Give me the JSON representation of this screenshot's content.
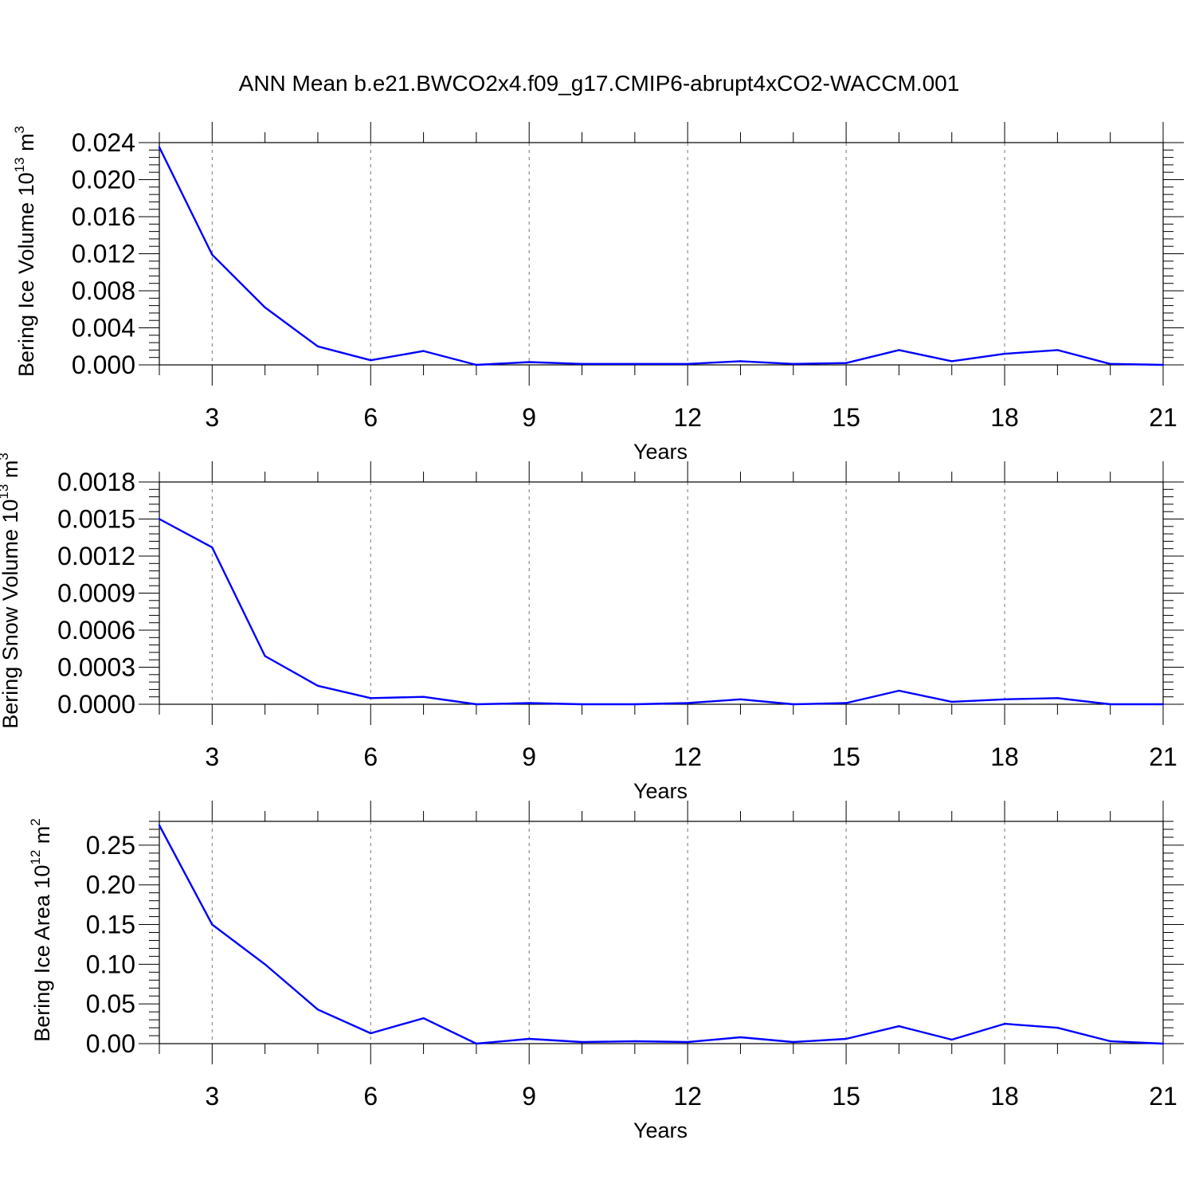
{
  "title": "ANN Mean b.e21.BWCO2x4.f09_g17.CMIP6-abrupt4xCO2-WACCM.001",
  "chart_data": [
    {
      "type": "line",
      "title": "ANN Mean b.e21.BWCO2x4.f09_g17.CMIP6-abrupt4xCO2-WACCM.001",
      "xlabel": "Years",
      "ylabel": {
        "main": "Bering Ice Volume 10",
        "sup": "13",
        "unit": " m",
        "unit_sup": "3"
      },
      "xlim": [
        2,
        21
      ],
      "ylim": [
        0,
        0.024
      ],
      "xticks": [
        "3",
        "6",
        "9",
        "12",
        "15",
        "18",
        "21"
      ],
      "yticks": [
        "0.000",
        "0.004",
        "0.008",
        "0.012",
        "0.016",
        "0.020",
        "0.024"
      ],
      "line_color": "#0000ff",
      "grid": "dashed vertical at major x ticks",
      "series": [
        {
          "name": "Bering Ice Volume",
          "x": [
            2,
            3,
            4,
            5,
            6,
            7,
            8,
            9,
            10,
            11,
            12,
            13,
            14,
            15,
            16,
            17,
            18,
            19,
            20,
            21
          ],
          "values": [
            0.0235,
            0.0119,
            0.0062,
            0.002,
            0.0005,
            0.0015,
            0.0,
            0.0003,
            0.0001,
            0.0001,
            0.0001,
            0.0004,
            0.0001,
            0.0002,
            0.0016,
            0.0004,
            0.0012,
            0.0016,
            0.0001,
            0.0
          ]
        }
      ]
    },
    {
      "type": "line",
      "xlabel": "Years",
      "ylabel": {
        "main": "Bering Snow Volume 10",
        "sup": "13",
        "unit": " m",
        "unit_sup": "3"
      },
      "xlim": [
        2,
        21
      ],
      "ylim": [
        0,
        0.0018
      ],
      "xticks": [
        "3",
        "6",
        "9",
        "12",
        "15",
        "18",
        "21"
      ],
      "yticks": [
        "0.0000",
        "0.0003",
        "0.0006",
        "0.0009",
        "0.0012",
        "0.0015",
        "0.0018"
      ],
      "line_color": "#0000ff",
      "grid": "dashed vertical at major x ticks",
      "series": [
        {
          "name": "Bering Snow Volume",
          "x": [
            2,
            3,
            4,
            5,
            6,
            7,
            8,
            9,
            10,
            11,
            12,
            13,
            14,
            15,
            16,
            17,
            18,
            19,
            20,
            21
          ],
          "values": [
            0.0015,
            0.00127,
            0.00039,
            0.00015,
            5e-05,
            6e-05,
            0.0,
            1e-05,
            0.0,
            0.0,
            1e-05,
            4e-05,
            0.0,
            1e-05,
            0.00011,
            2e-05,
            4e-05,
            5e-05,
            0.0,
            0.0
          ]
        }
      ]
    },
    {
      "type": "line",
      "xlabel": "Years",
      "ylabel": {
        "main": "Bering Ice Area 10",
        "sup": "12",
        "unit": " m",
        "unit_sup": "2"
      },
      "xlim": [
        2,
        21
      ],
      "ylim": [
        0,
        0.28
      ],
      "xticks": [
        "3",
        "6",
        "9",
        "12",
        "15",
        "18",
        "21"
      ],
      "yticks": [
        "0.00",
        "0.05",
        "0.10",
        "0.15",
        "0.20",
        "0.25"
      ],
      "line_color": "#0000ff",
      "grid": "dashed vertical at major x ticks",
      "series": [
        {
          "name": "Bering Ice Area",
          "x": [
            2,
            3,
            4,
            5,
            6,
            7,
            8,
            9,
            10,
            11,
            12,
            13,
            14,
            15,
            16,
            17,
            18,
            19,
            20,
            21
          ],
          "values": [
            0.275,
            0.15,
            0.1,
            0.043,
            0.013,
            0.032,
            0.0,
            0.006,
            0.002,
            0.003,
            0.002,
            0.008,
            0.002,
            0.006,
            0.022,
            0.005,
            0.025,
            0.02,
            0.003,
            0.0
          ]
        }
      ]
    }
  ]
}
